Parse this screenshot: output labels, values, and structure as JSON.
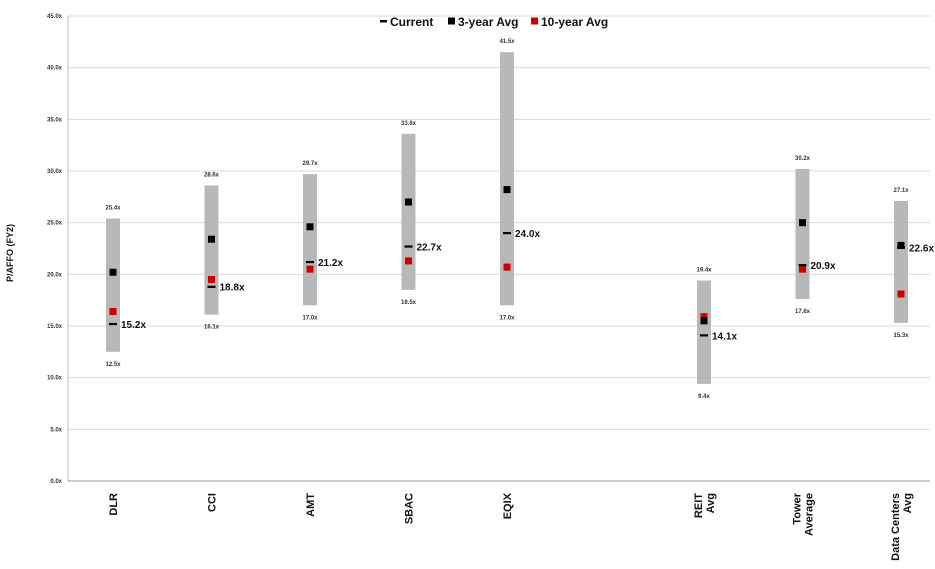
{
  "chart_data": {
    "type": "range-marker",
    "ylabel": "P/AFFO (FY2)",
    "ylim": [
      0,
      45
    ],
    "yticks": [
      "0.0x",
      "5.0x",
      "10.0x",
      "15.0x",
      "20.0x",
      "25.0x",
      "30.0x",
      "35.0x",
      "40.0x",
      "45.0x"
    ],
    "grid": true,
    "legend_position": "top-center",
    "legend": [
      {
        "key": "current",
        "label": "Current",
        "color": "#000000"
      },
      {
        "key": "three_year",
        "label": "3-year Avg",
        "color": "#000000"
      },
      {
        "key": "ten_year",
        "label": "10-year Avg",
        "color": "#cc0000"
      }
    ],
    "range_color": "#b8b8b8",
    "categories": [
      {
        "label": "DLR",
        "slot": 0,
        "low": 12.5,
        "high": 25.4,
        "low_label": "12.5x",
        "high_label": "25.4x",
        "current": 15.2,
        "current_label": "15.2x",
        "three_year": 20.2,
        "ten_year": 16.4
      },
      {
        "label": "CCI",
        "slot": 1,
        "low": 16.1,
        "high": 28.6,
        "low_label": "16.1x",
        "high_label": "28.6x",
        "current": 18.8,
        "current_label": "18.8x",
        "three_year": 23.4,
        "ten_year": 19.5
      },
      {
        "label": "AMT",
        "slot": 2,
        "low": 17.0,
        "high": 29.7,
        "low_label": "17.0x",
        "high_label": "29.7x",
        "current": 21.2,
        "current_label": "21.2x",
        "three_year": 24.6,
        "ten_year": 20.5
      },
      {
        "label": "SBAC",
        "slot": 3,
        "low": 18.5,
        "high": 33.6,
        "low_label": "18.5x",
        "high_label": "33.6x",
        "current": 22.7,
        "current_label": "22.7x",
        "three_year": 27.0,
        "ten_year": 21.3
      },
      {
        "label": "EQIX",
        "slot": 4,
        "low": 17.0,
        "high": 41.5,
        "low_label": "17.0x",
        "high_label": "41.5x",
        "current": 24.0,
        "current_label": "24.0x",
        "three_year": 28.2,
        "ten_year": 20.7
      },
      {
        "label": "REIT Avg",
        "slot": 6,
        "low": 9.4,
        "high": 19.4,
        "low_label": "9.4x",
        "high_label": "19.4x",
        "current": 14.1,
        "current_label": "14.1x",
        "three_year": 15.5,
        "ten_year": 15.9
      },
      {
        "label": "Tower Average",
        "slot": 7,
        "low": 17.6,
        "high": 30.2,
        "low_label": "17.6x",
        "high_label": "30.2x",
        "current": 20.9,
        "current_label": "20.9x",
        "three_year": 25.0,
        "ten_year": 20.5
      },
      {
        "label": "Data Centers Avg",
        "slot": 8,
        "low": 15.3,
        "high": 27.1,
        "low_label": "15.3x",
        "high_label": "27.1x",
        "current": 22.6,
        "current_label": "22.6x",
        "three_year": 22.8,
        "ten_year": 18.1
      }
    ]
  }
}
